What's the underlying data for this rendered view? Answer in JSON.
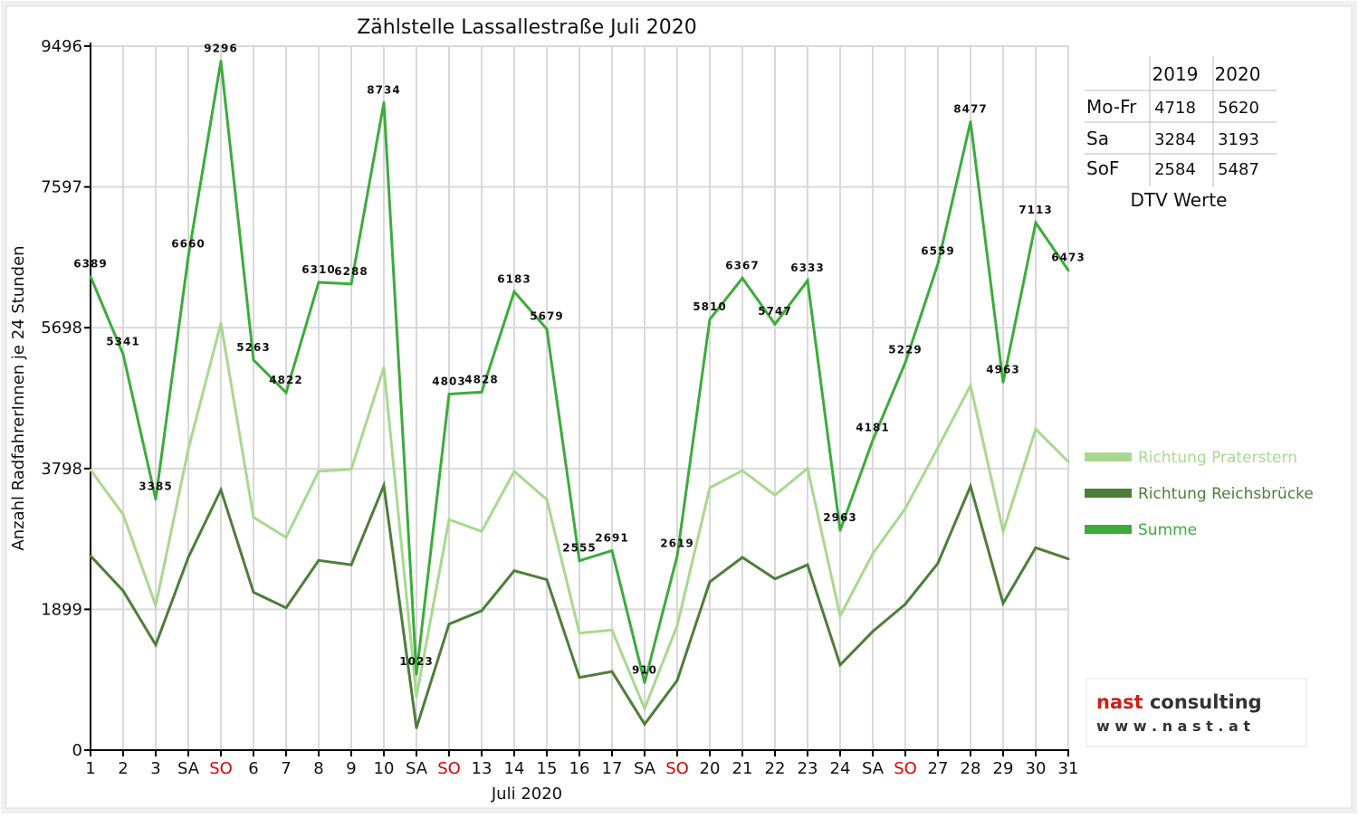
{
  "chart_data": {
    "type": "line",
    "title": "Zählstelle Lassallestraße Juli 2020",
    "xlabel": "Juli 2020",
    "ylabel": "Anzahl RadfahrerInnen je 24 Stunden",
    "ylim": [
      0,
      9496
    ],
    "yticks": [
      "0",
      "1899",
      "3798",
      "5698",
      "7597",
      "9496"
    ],
    "categories": [
      "1",
      "2",
      "3",
      "SA",
      "SO",
      "6",
      "7",
      "8",
      "9",
      "10",
      "SA",
      "SO",
      "13",
      "14",
      "15",
      "16",
      "17",
      "SA",
      "SO",
      "20",
      "21",
      "22",
      "23",
      "24",
      "SA",
      "SO",
      "27",
      "28",
      "29",
      "30",
      "31"
    ],
    "weekend_highlight": [
      "SO"
    ],
    "grid": true,
    "legend_position": "right",
    "series": [
      {
        "name": "Richtung Praterstern",
        "color": "#a8d890",
        "values": [
          3780,
          3180,
          1950,
          4060,
          5760,
          3140,
          2870,
          3760,
          3790,
          5160,
          720,
          3110,
          2950,
          3760,
          3380,
          1580,
          1620,
          560,
          1680,
          3540,
          3770,
          3440,
          3800,
          1810,
          2650,
          3260,
          4080,
          4920,
          2950,
          4330,
          3890
        ]
      },
      {
        "name": "Richtung Reichsbrücke",
        "color": "#4e7d3a",
        "values": [
          2620,
          2150,
          1420,
          2600,
          3510,
          2130,
          1920,
          2560,
          2500,
          3570,
          300,
          1700,
          1880,
          2420,
          2300,
          980,
          1060,
          350,
          940,
          2270,
          2600,
          2310,
          2500,
          1150,
          1600,
          1970,
          2520,
          3560,
          1980,
          2730,
          2580
        ]
      },
      {
        "name": "Summe",
        "color": "#3cab3c",
        "values": [
          6389,
          5341,
          3385,
          6660,
          9296,
          5263,
          4822,
          6310,
          6288,
          8734,
          1023,
          4803,
          4828,
          6183,
          5679,
          2555,
          2691,
          910,
          2619,
          5810,
          6367,
          5747,
          6333,
          2963,
          4181,
          5229,
          6559,
          8477,
          4963,
          7113,
          6473
        ]
      }
    ],
    "data_labels": [
      "6389",
      "5341",
      "3385",
      "6660",
      "9296",
      "5263",
      "4822",
      "6310",
      "6288",
      "8734",
      "1023",
      "4803",
      "4828",
      "6183",
      "5679",
      "2555",
      "2691",
      "910",
      "2619",
      "5810",
      "6367",
      "5747",
      "6333",
      "2963",
      "4181",
      "5229",
      "6559",
      "8477",
      "4963",
      "7113",
      "6473"
    ]
  },
  "dtv_table": {
    "headers": [
      "",
      "2019",
      "2020"
    ],
    "rows": [
      [
        "Mo-Fr",
        "4718",
        "5620"
      ],
      [
        "Sa",
        "3284",
        "3193"
      ],
      [
        "SoF",
        "2584",
        "5487"
      ]
    ],
    "caption": "DTV Werte"
  },
  "logo": {
    "brand": "nast consulting",
    "url": "w w w . n a s t . a t"
  },
  "colors": {
    "grid": "#d9d9d9",
    "sunday": "#e00000",
    "background": "#ffffff",
    "outer": "#ebebeb"
  }
}
